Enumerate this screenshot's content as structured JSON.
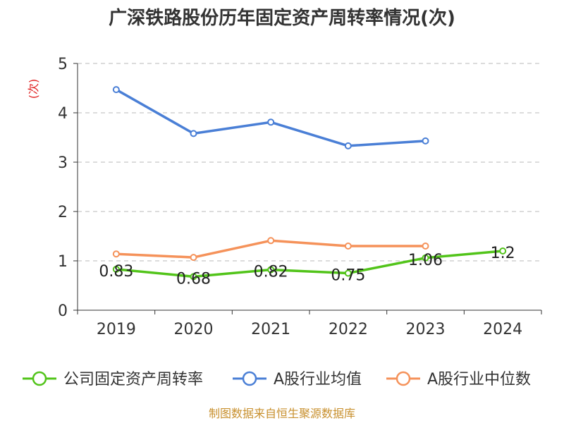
{
  "chart_data": {
    "type": "line",
    "title": "广深铁路股份历年固定资产周转率情况(次)",
    "ylabel": "(次)",
    "categories": [
      "2019",
      "2020",
      "2021",
      "2022",
      "2023",
      "2024"
    ],
    "ylim": [
      0,
      5
    ],
    "yticks": [
      0,
      1,
      2,
      3,
      4,
      5
    ],
    "grid": true,
    "legend_position": "bottom",
    "series": [
      {
        "name": "公司固定资产周转率",
        "color": "#52c41a",
        "values": [
          0.83,
          0.68,
          0.82,
          0.75,
          1.06,
          1.2
        ],
        "labels": [
          "0.83",
          "0.68",
          "0.82",
          "0.75",
          "1.06",
          "1.2"
        ]
      },
      {
        "name": "A股行业均值",
        "color": "#4a7fd6",
        "values": [
          4.47,
          3.58,
          3.81,
          3.33,
          3.43,
          null
        ]
      },
      {
        "name": "A股行业中位数",
        "color": "#f5925a",
        "values": [
          1.14,
          1.07,
          1.41,
          1.3,
          1.3,
          null
        ]
      }
    ]
  },
  "footer": {
    "source": "制图数据来自恒生聚源数据库"
  }
}
